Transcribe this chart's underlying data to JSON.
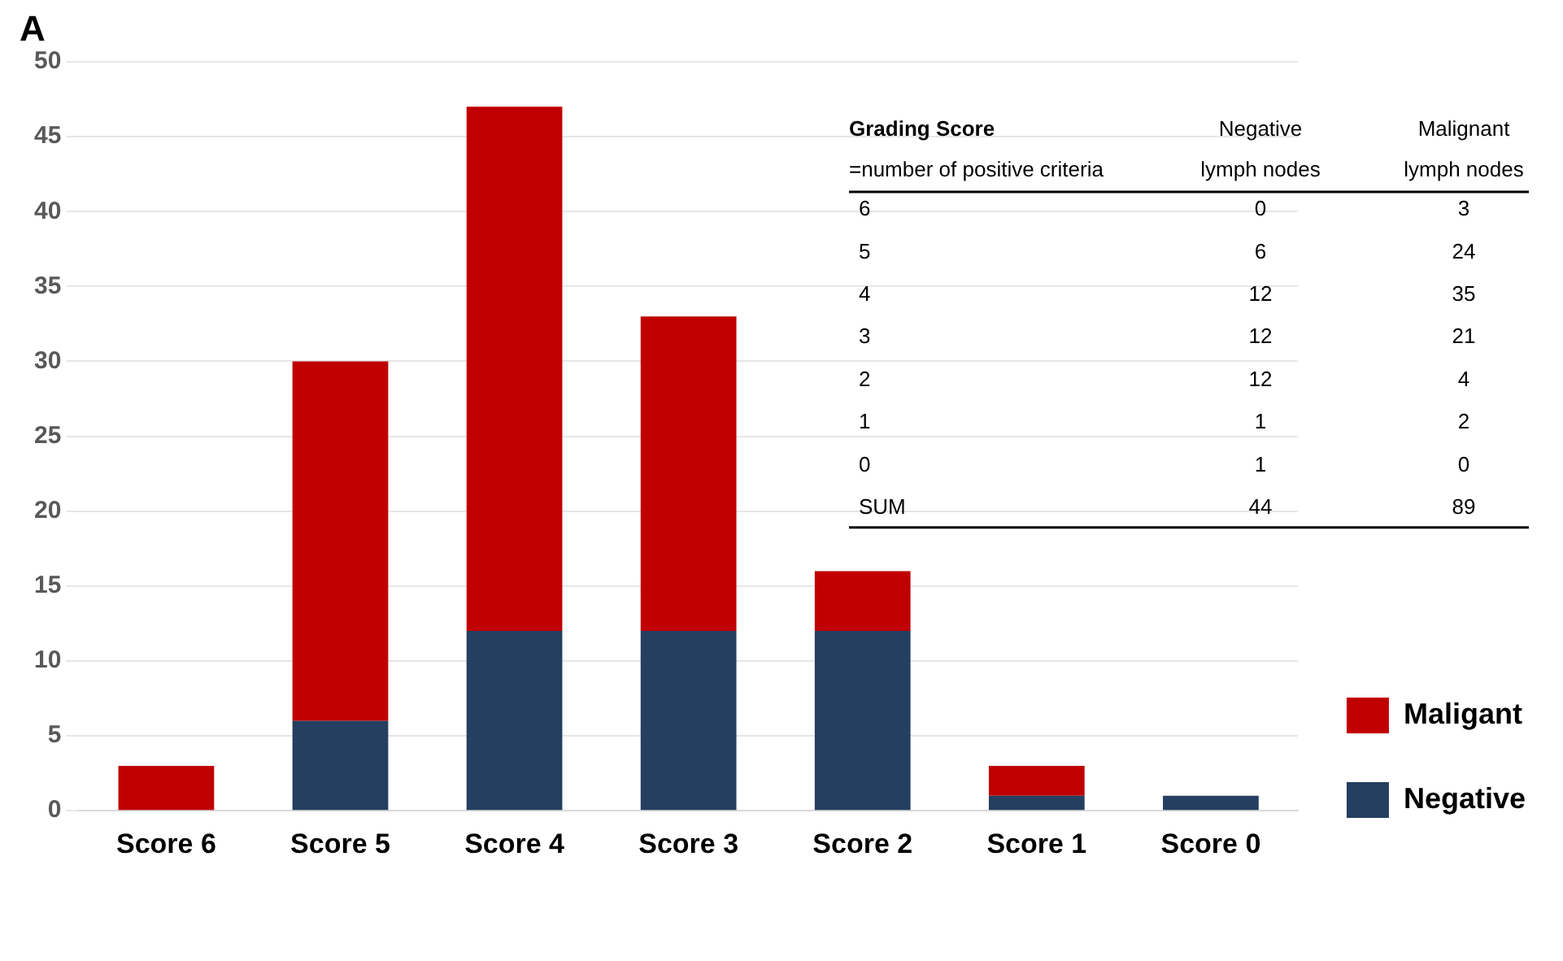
{
  "chart_data": {
    "type": "bar",
    "stacked": true,
    "categories": [
      "Score 6",
      "Score 5",
      "Score 4",
      "Score 3",
      "Score 2",
      "Score 1",
      "Score 0"
    ],
    "series": [
      {
        "name": "Negative",
        "color": "#243f60",
        "values": [
          0,
          6,
          12,
          12,
          12,
          1,
          1
        ]
      },
      {
        "name": "Maligant",
        "color": "#c00000",
        "values": [
          3,
          24,
          35,
          21,
          4,
          2,
          0
        ]
      }
    ],
    "ylim": [
      0,
      50
    ],
    "yticks": [
      0,
      5,
      10,
      15,
      20,
      25,
      30,
      35,
      40,
      45,
      50
    ],
    "grid": "y",
    "legend": "right",
    "annotations": [
      "A",
      "Grading Score",
      "=number of positive criteria",
      "Negative",
      "lymph nodes",
      "Malignant",
      "lymph nodes",
      "6",
      "0",
      "3",
      "5",
      "6",
      "24",
      "4",
      "12",
      "35",
      "3",
      "12",
      "21",
      "2",
      "12",
      "4",
      "1",
      "1",
      "2",
      "0",
      "1",
      "0",
      "SUM",
      "44",
      "89"
    ]
  }
}
